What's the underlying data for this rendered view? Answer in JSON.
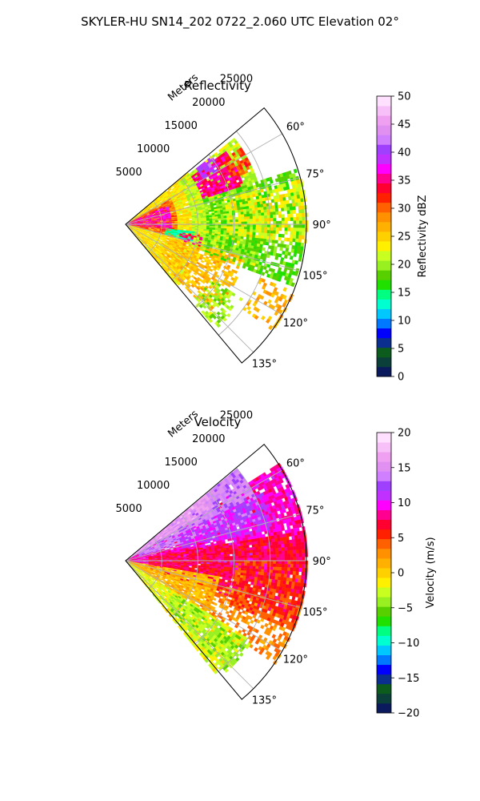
{
  "figure": {
    "suptitle": "SKYLER-HU  SN14_202  0722_2.060 UTC Elevation 02°"
  },
  "chart_data": [
    {
      "type": "heatmap",
      "subtype": "polar-sector",
      "title": "Reflectivity",
      "range_label": "Meters",
      "range_ticks": [
        5000,
        10000,
        15000,
        20000,
        25000
      ],
      "rmax": 25000,
      "theta_ticks": [
        "60°",
        "75°",
        "90°",
        "105°",
        "120°",
        "135°"
      ],
      "theta_tick_values": [
        60,
        75,
        90,
        105,
        120,
        135
      ],
      "theta_range": [
        50,
        140
      ],
      "grid": true,
      "colorbar": {
        "label": "Reflectivity dBZ",
        "min": 0,
        "max": 50,
        "ticks": [
          "0",
          "5",
          "10",
          "15",
          "20",
          "25",
          "30",
          "35",
          "40",
          "45",
          "50"
        ],
        "colors": [
          "#0a1a5c",
          "#0a3f3a",
          "#0c5c1e",
          "#0b2f8f",
          "#0000ff",
          "#0078ff",
          "#00c8ff",
          "#00ffd0",
          "#00ff80",
          "#20e000",
          "#58d000",
          "#98f020",
          "#c8ff20",
          "#fff000",
          "#ffd000",
          "#ffb000",
          "#ff9000",
          "#ff6000",
          "#ff2000",
          "#ff0030",
          "#ff0090",
          "#ff00ff",
          "#c030ff",
          "#a040ff",
          "#d080ff",
          "#e090f0",
          "#f0a0f0",
          "#f8c0f8",
          "#ffe0ff"
        ]
      },
      "regions": [
        {
          "value": 24,
          "theta": [
            50,
            140
          ],
          "r": [
            0,
            11000
          ],
          "density": 0.94
        },
        {
          "value": 30,
          "theta": [
            60,
            105
          ],
          "r": [
            500,
            7000
          ],
          "density": 0.9
        },
        {
          "value": 36,
          "theta": [
            66,
            98
          ],
          "r": [
            500,
            6500
          ],
          "density": 0.7
        },
        {
          "value": 21,
          "theta": [
            52,
            108
          ],
          "r": [
            9000,
            19000
          ],
          "density": 0.9
        },
        {
          "value": 18,
          "theta": [
            72,
            110
          ],
          "r": [
            11000,
            24500
          ],
          "density": 0.62
        },
        {
          "value": 23,
          "theta": [
            76,
            96
          ],
          "r": [
            14000,
            25000
          ],
          "density": 0.55
        },
        {
          "value": 35,
          "theta": [
            54,
            72
          ],
          "r": [
            11000,
            17000
          ],
          "density": 0.85
        },
        {
          "value": 40,
          "theta": [
            52,
            60
          ],
          "r": [
            12500,
            15000
          ],
          "density": 0.7
        },
        {
          "value": 31,
          "theta": [
            56,
            66
          ],
          "r": [
            16000,
            19000
          ],
          "density": 0.6
        },
        {
          "value": 14,
          "theta": [
            96,
            104
          ],
          "r": [
            5500,
            9500
          ],
          "density": 0.85
        },
        {
          "value": 26,
          "theta": [
            105,
            136
          ],
          "r": [
            6000,
            17000
          ],
          "density": 0.55
        },
        {
          "value": 27,
          "theta": [
            112,
            126
          ],
          "r": [
            20000,
            25000
          ],
          "density": 0.45
        },
        {
          "value": 34,
          "theta": [
            98,
            106
          ],
          "r": [
            7500,
            10500
          ],
          "density": 0.5
        },
        {
          "value": 20,
          "theta": [
            122,
            138
          ],
          "r": [
            14000,
            19000
          ],
          "density": 0.45
        }
      ]
    },
    {
      "type": "heatmap",
      "subtype": "polar-sector",
      "title": "Velocity",
      "range_label": "Meters",
      "range_ticks": [
        5000,
        10000,
        15000,
        20000,
        25000
      ],
      "rmax": 25000,
      "theta_ticks": [
        "60°",
        "75°",
        "90°",
        "105°",
        "120°",
        "135°"
      ],
      "theta_tick_values": [
        60,
        75,
        90,
        105,
        120,
        135
      ],
      "theta_range": [
        50,
        140
      ],
      "grid": true,
      "colorbar": {
        "label": "Velocity (m/s)",
        "min": -20,
        "max": 20,
        "ticks": [
          "−20",
          "−15",
          "−10",
          "−5",
          "0",
          "5",
          "10",
          "15",
          "20"
        ],
        "colors": [
          "#0a1a5c",
          "#0a3f3a",
          "#0c5c1e",
          "#0b2f8f",
          "#0000ff",
          "#0078ff",
          "#00c8ff",
          "#00ffd0",
          "#00ff80",
          "#20e000",
          "#58d000",
          "#98f020",
          "#c8ff20",
          "#fff000",
          "#ffd000",
          "#ffb000",
          "#ff9000",
          "#ff6000",
          "#ff2000",
          "#ff0030",
          "#ff0090",
          "#ff00ff",
          "#c030ff",
          "#a040ff",
          "#d080ff",
          "#e090f0",
          "#f0a0f0",
          "#f8c0f8",
          "#ffe0ff"
        ]
      },
      "regions": [
        {
          "value": 9,
          "theta": [
            58,
            100
          ],
          "r": [
            0,
            25000
          ],
          "density": 0.9
        },
        {
          "value": 7,
          "theta": [
            80,
            108
          ],
          "r": [
            3000,
            25000
          ],
          "density": 0.85
        },
        {
          "value": 14,
          "theta": [
            50,
            72
          ],
          "r": [
            2000,
            20000
          ],
          "density": 0.95
        },
        {
          "value": 16,
          "theta": [
            50,
            58
          ],
          "r": [
            1000,
            14000
          ],
          "density": 0.9
        },
        {
          "value": 11,
          "theta": [
            64,
            78
          ],
          "r": [
            8000,
            21000
          ],
          "density": 0.7
        },
        {
          "value": 1,
          "theta": [
            100,
            122
          ],
          "r": [
            0,
            13000
          ],
          "density": 0.9
        },
        {
          "value": 3,
          "theta": [
            104,
            124
          ],
          "r": [
            12000,
            25000
          ],
          "density": 0.45
        },
        {
          "value": -2,
          "theta": [
            122,
            140
          ],
          "r": [
            0,
            20000
          ],
          "density": 0.85
        },
        {
          "value": -4,
          "theta": [
            124,
            138
          ],
          "r": [
            8000,
            20500
          ],
          "density": 0.6
        },
        {
          "value": 5,
          "theta": [
            90,
            112
          ],
          "r": [
            15000,
            25000
          ],
          "density": 0.6
        }
      ]
    }
  ]
}
